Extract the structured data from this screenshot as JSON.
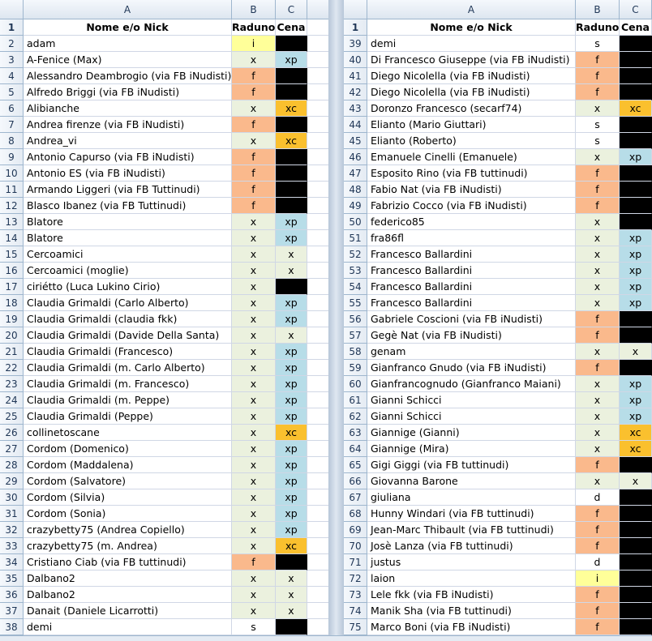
{
  "columns": [
    "A",
    "B",
    "C"
  ],
  "header": {
    "name": "Nome e/o Nick",
    "raduno": "Raduno",
    "cena": "Cena"
  },
  "colors": {
    "f": "#fab98c",
    "x": "#ebf1de",
    "i": "#ffff99",
    "s": "#ffffff",
    "d": "#ffffff",
    "xp": "#b7dde8",
    "xc": "#fac02e",
    "black": "#000000",
    "empty": "#ffffff"
  },
  "left_rows": [
    {
      "n": "2",
      "name": "adam",
      "b": "i",
      "c": ""
    },
    {
      "n": "3",
      "name": "A-Fenice (Max)",
      "b": "x",
      "c": "xp"
    },
    {
      "n": "4",
      "name": "Alessandro Deambrogio (via FB iNudisti)",
      "b": "f",
      "c": ""
    },
    {
      "n": "5",
      "name": "Alfredo Briggi (via FB iNudisti)",
      "b": "f",
      "c": ""
    },
    {
      "n": "6",
      "name": "Alibianche",
      "b": "x",
      "c": "xc"
    },
    {
      "n": "7",
      "name": "Andrea firenze (via FB iNudisti)",
      "b": "f",
      "c": ""
    },
    {
      "n": "8",
      "name": "Andrea_vi",
      "b": "x",
      "c": "xc"
    },
    {
      "n": "9",
      "name": "Antonio Capurso (via FB iNudisti)",
      "b": "f",
      "c": ""
    },
    {
      "n": "10",
      "name": "Antonio ES (via FB iNudisti)",
      "b": "f",
      "c": ""
    },
    {
      "n": "11",
      "name": "Armando Liggeri (via FB Tuttinudi)",
      "b": "f",
      "c": ""
    },
    {
      "n": "12",
      "name": "Blasco Ibanez (via FB Tuttinudi)",
      "b": "f",
      "c": ""
    },
    {
      "n": "13",
      "name": "Blatore",
      "b": "x",
      "c": "xp"
    },
    {
      "n": "14",
      "name": "Blatore",
      "b": "x",
      "c": "xp"
    },
    {
      "n": "15",
      "name": "Cercoamici",
      "b": "x",
      "c": "x"
    },
    {
      "n": "16",
      "name": "Cercoamici (moglie)",
      "b": "x",
      "c": "x"
    },
    {
      "n": "17",
      "name": "ciriétto (Luca Lukino Cirio)",
      "b": "x",
      "c": ""
    },
    {
      "n": "18",
      "name": "Claudia Grimaldi (Carlo Alberto)",
      "b": "x",
      "c": "xp"
    },
    {
      "n": "19",
      "name": "Claudia Grimaldi (claudia fkk)",
      "b": "x",
      "c": "xp"
    },
    {
      "n": "20",
      "name": "Claudia Grimaldi (Davide Della Santa)",
      "b": "x",
      "c": "x"
    },
    {
      "n": "21",
      "name": "Claudia Grimaldi (Francesco)",
      "b": "x",
      "c": "xp"
    },
    {
      "n": "22",
      "name": "Claudia Grimaldi (m. Carlo Alberto)",
      "b": "x",
      "c": "xp"
    },
    {
      "n": "23",
      "name": "Claudia Grimaldi (m. Francesco)",
      "b": "x",
      "c": "xp"
    },
    {
      "n": "24",
      "name": "Claudia Grimaldi (m. Peppe)",
      "b": "x",
      "c": "xp"
    },
    {
      "n": "25",
      "name": "Claudia Grimaldi (Peppe)",
      "b": "x",
      "c": "xp"
    },
    {
      "n": "26",
      "name": "collinetoscane",
      "b": "x",
      "c": "xc"
    },
    {
      "n": "27",
      "name": "Cordom (Domenico)",
      "b": "x",
      "c": "xp"
    },
    {
      "n": "28",
      "name": "Cordom (Maddalena)",
      "b": "x",
      "c": "xp"
    },
    {
      "n": "29",
      "name": "Cordom (Salvatore)",
      "b": "x",
      "c": "xp"
    },
    {
      "n": "30",
      "name": "Cordom (Silvia)",
      "b": "x",
      "c": "xp"
    },
    {
      "n": "31",
      "name": "Cordom (Sonia)",
      "b": "x",
      "c": "xp"
    },
    {
      "n": "32",
      "name": "crazybetty75 (Andrea Copiello)",
      "b": "x",
      "c": "xp"
    },
    {
      "n": "33",
      "name": "crazybetty75 (m. Andrea)",
      "b": "x",
      "c": "xc"
    },
    {
      "n": "34",
      "name": "Cristiano Ciab (via FB tuttinudi)",
      "b": "f",
      "c": ""
    },
    {
      "n": "35",
      "name": "Dalbano2",
      "b": "x",
      "c": "x"
    },
    {
      "n": "36",
      "name": "Dalbano2",
      "b": "x",
      "c": "x"
    },
    {
      "n": "37",
      "name": "Danait (Daniele Licarrotti)",
      "b": "x",
      "c": "x"
    },
    {
      "n": "38",
      "name": "demi",
      "b": "s",
      "c": ""
    }
  ],
  "right_rows": [
    {
      "n": "39",
      "name": "demi",
      "b": "s",
      "c": ""
    },
    {
      "n": "40",
      "name": "Di Francesco Giuseppe (via FB iNudisti)",
      "b": "f",
      "c": ""
    },
    {
      "n": "41",
      "name": "Diego Nicolella (via FB iNudisti)",
      "b": "f",
      "c": ""
    },
    {
      "n": "42",
      "name": "Diego Nicolella (via FB iNudisti)",
      "b": "f",
      "c": ""
    },
    {
      "n": "43",
      "name": "Doronzo Francesco (secarf74)",
      "b": "x",
      "c": "xc"
    },
    {
      "n": "44",
      "name": "Elianto (Mario Giuttari)",
      "b": "s",
      "c": ""
    },
    {
      "n": "45",
      "name": "Elianto (Roberto)",
      "b": "s",
      "c": ""
    },
    {
      "n": "46",
      "name": "Emanuele Cinelli (Emanuele)",
      "b": "x",
      "c": "xp"
    },
    {
      "n": "47",
      "name": "Esposito Rino (via FB tuttinudi)",
      "b": "f",
      "c": ""
    },
    {
      "n": "48",
      "name": "Fabio Nat (via FB iNudisti)",
      "b": "f",
      "c": ""
    },
    {
      "n": "49",
      "name": "Fabrizio Cocco (via FB iNudisti)",
      "b": "f",
      "c": ""
    },
    {
      "n": "50",
      "name": "federico85",
      "b": "x",
      "c": ""
    },
    {
      "n": "51",
      "name": "fra86fl",
      "b": "x",
      "c": "xp"
    },
    {
      "n": "52",
      "name": "Francesco Ballardini",
      "b": "x",
      "c": "xp"
    },
    {
      "n": "53",
      "name": "Francesco Ballardini",
      "b": "x",
      "c": "xp"
    },
    {
      "n": "54",
      "name": "Francesco Ballardini",
      "b": "x",
      "c": "xp"
    },
    {
      "n": "55",
      "name": "Francesco Ballardini",
      "b": "x",
      "c": "xp"
    },
    {
      "n": "56",
      "name": "Gabriele Coscioni (via FB iNudisti)",
      "b": "f",
      "c": ""
    },
    {
      "n": "57",
      "name": "Gegè Nat (via FB iNudisti)",
      "b": "f",
      "c": ""
    },
    {
      "n": "58",
      "name": "genam",
      "b": "x",
      "c": "x"
    },
    {
      "n": "59",
      "name": "Gianfranco Gnudo (via FB iNudisti)",
      "b": "f",
      "c": ""
    },
    {
      "n": "60",
      "name": "Gianfrancognudo (Gianfranco Maiani)",
      "b": "x",
      "c": "xp"
    },
    {
      "n": "61",
      "name": "Gianni Schicci",
      "b": "x",
      "c": "xp"
    },
    {
      "n": "62",
      "name": "Gianni Schicci",
      "b": "x",
      "c": "xp"
    },
    {
      "n": "63",
      "name": "Giannige (Gianni)",
      "b": "x",
      "c": "xc"
    },
    {
      "n": "64",
      "name": "Giannige (Mira)",
      "b": "x",
      "c": "xc"
    },
    {
      "n": "65",
      "name": "Gigi Giggi (via FB tuttinudi)",
      "b": "f",
      "c": ""
    },
    {
      "n": "66",
      "name": "Giovanna Barone",
      "b": "x",
      "c": "x"
    },
    {
      "n": "67",
      "name": "giuliana",
      "b": "d",
      "c": ""
    },
    {
      "n": "68",
      "name": "Hunny Windari (via FB tuttinudi)",
      "b": "f",
      "c": ""
    },
    {
      "n": "69",
      "name": "Jean-Marc Thibault (via FB tuttinudi)",
      "b": "f",
      "c": ""
    },
    {
      "n": "70",
      "name": "Josè Lanza (via FB tuttinudi)",
      "b": "f",
      "c": ""
    },
    {
      "n": "71",
      "name": "justus",
      "b": "d",
      "c": ""
    },
    {
      "n": "72",
      "name": "laion",
      "b": "i",
      "c": ""
    },
    {
      "n": "73",
      "name": "Lele fkk (via FB iNudisti)",
      "b": "f",
      "c": ""
    },
    {
      "n": "74",
      "name": "Manik Sha (via FB tuttinudi)",
      "b": "f",
      "c": ""
    },
    {
      "n": "75",
      "name": "Marco Boni (via FB iNudisti)",
      "b": "f",
      "c": ""
    }
  ]
}
